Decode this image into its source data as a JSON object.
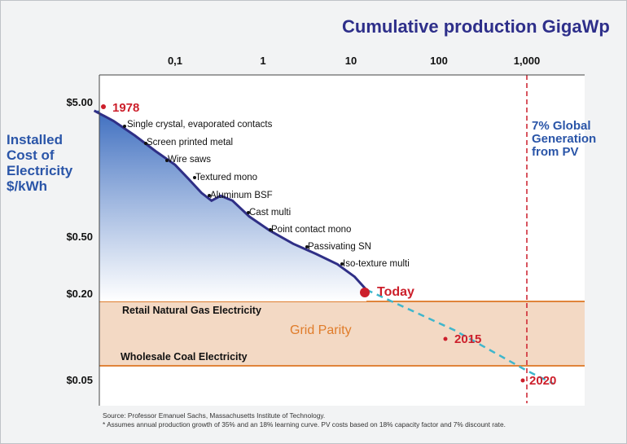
{
  "colors": {
    "curve": "#2f2f86",
    "fill_top": "#4a78c4",
    "fill_bottom": "#ffffff",
    "band": "#f3d9c4",
    "band_line": "#e0843a",
    "accent_red": "#cc1f2b",
    "dashed_projection": "#3fb6cc",
    "title": "#2e2f8a",
    "axis_label": "#2a55a8"
  },
  "chart_data": {
    "type": "line",
    "title": "Cumulative production GigaWp",
    "ylabel_lines": [
      "Installed",
      "Cost of",
      "Electricity",
      "$/kWh"
    ],
    "x_scale": "log",
    "y_scale": "log",
    "x_ticks": [
      "0,1",
      "1",
      "10",
      "100",
      "1,000"
    ],
    "y_ticks": [
      "$5.00",
      "$0.50",
      "$0.20",
      "$0.05"
    ],
    "series": [
      {
        "points": [
          {
            "x": 0.012,
            "y": 4.3
          },
          {
            "x": 0.02,
            "y": 3.6
          },
          {
            "x": 0.035,
            "y": 2.8
          },
          {
            "x": 0.06,
            "y": 2.15
          },
          {
            "x": 0.1,
            "y": 1.7
          },
          {
            "x": 0.14,
            "y": 1.35
          },
          {
            "x": 0.2,
            "y": 1.05
          },
          {
            "x": 0.26,
            "y": 0.92
          },
          {
            "x": 0.33,
            "y": 1.0
          },
          {
            "x": 0.45,
            "y": 0.92
          },
          {
            "x": 0.7,
            "y": 0.7
          },
          {
            "x": 1.2,
            "y": 0.55
          },
          {
            "x": 2.2,
            "y": 0.44
          },
          {
            "x": 4,
            "y": 0.37
          },
          {
            "x": 7,
            "y": 0.31
          },
          {
            "x": 11,
            "y": 0.25
          },
          {
            "x": 15,
            "y": 0.2
          }
        ]
      }
    ],
    "projection": [
      {
        "x": 15,
        "y": 0.2
      },
      {
        "x": 150,
        "y": 0.1
      },
      {
        "x": 1000,
        "y": 0.05
      },
      {
        "x": 2000,
        "y": 0.04
      }
    ],
    "milestones": [
      {
        "label": "1978",
        "x": 0.0115,
        "y": 4.6
      },
      {
        "label": "Today",
        "x": 15,
        "y": 0.2
      },
      {
        "label": "2015",
        "x": 150,
        "y": 0.1
      },
      {
        "label": "2020",
        "x": 1000,
        "y": 0.05
      }
    ],
    "annotations": [
      "Single crystal, evaporated contacts",
      "Screen printed metal",
      "Wire saws",
      "Textured  mono",
      "Aluminum BSF",
      "Cast multi",
      "Point contact mono",
      "Passivating SN",
      "Iso-texture multi"
    ],
    "bands": {
      "upper_label": "Retail Natural Gas Electricity",
      "lower_label": "Wholesale Coal Electricity",
      "zone_label": "Grid Parity"
    },
    "vline_note": [
      "7% Global",
      "Generation",
      "from PV"
    ],
    "source_lines": [
      "Source: Professor Emanuel Sachs, Massachusetts Institute of Technology.",
      "* Assumes annual production growth of 35% and an 18% learning curve. PV costs based on 18% capacity factor and 7% discount rate."
    ]
  }
}
